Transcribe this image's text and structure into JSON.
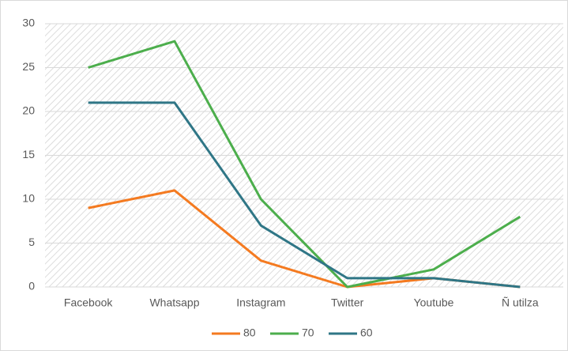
{
  "chart_data": {
    "type": "line",
    "categories": [
      "Facebook",
      "Whatsapp",
      "Instagram",
      "Twitter",
      "Youtube",
      "Ñ utilza"
    ],
    "series": [
      {
        "name": "80",
        "color": "#f47a20",
        "values": [
          9,
          11,
          3,
          0,
          1,
          0
        ]
      },
      {
        "name": "70",
        "color": "#4cae4c",
        "values": [
          25,
          28,
          10,
          0,
          2,
          8
        ]
      },
      {
        "name": "60",
        "color": "#2f7686",
        "values": [
          21,
          21,
          7,
          1,
          1,
          0
        ]
      }
    ],
    "ylim": [
      0,
      30
    ],
    "yticks": [
      0,
      5,
      10,
      15,
      20,
      25,
      30
    ],
    "grid": true,
    "legend": "bottom"
  }
}
